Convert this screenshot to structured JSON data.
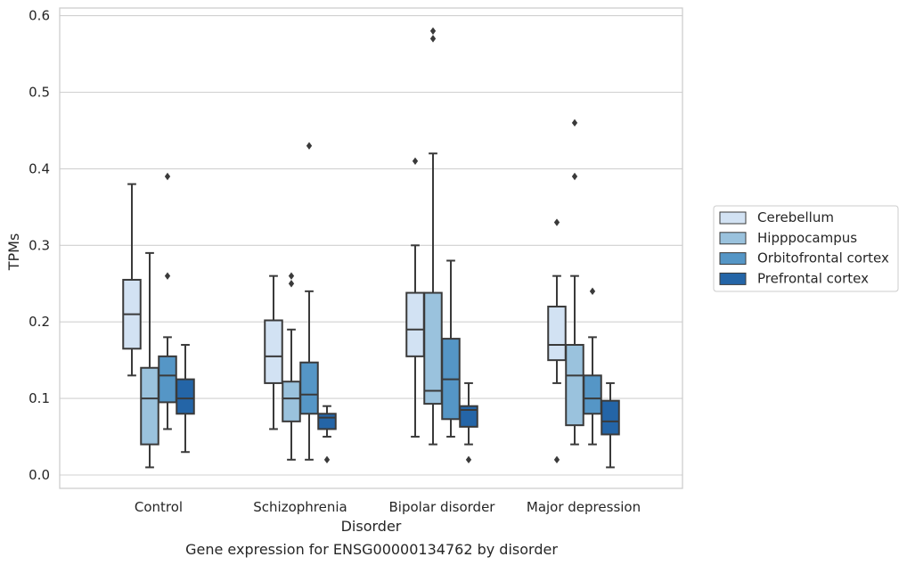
{
  "chart_data": {
    "type": "box",
    "title": "",
    "caption": "Gene expression for ENSG00000134762 by disorder",
    "xlabel": "Disorder",
    "ylabel": "TPMs",
    "ylim": [
      -0.017,
      0.61
    ],
    "yticks": [
      0.0,
      0.1,
      0.2,
      0.3,
      0.4,
      0.5,
      0.6
    ],
    "ytick_labels": [
      "0.0",
      "0.1",
      "0.2",
      "0.3",
      "0.4",
      "0.5",
      "0.6"
    ],
    "grid": true,
    "legend_position": "right",
    "categories": [
      "Control",
      "Schizophrenia",
      "Bipolar disorder",
      "Major depression"
    ],
    "series": [
      {
        "name": "Cerebellum",
        "color": "#d2e2f3",
        "boxes": [
          {
            "whislo": 0.13,
            "q1": 0.165,
            "med": 0.21,
            "q3": 0.255,
            "whishi": 0.38,
            "fliers": []
          },
          {
            "whislo": 0.06,
            "q1": 0.12,
            "med": 0.155,
            "q3": 0.202,
            "whishi": 0.26,
            "fliers": []
          },
          {
            "whislo": 0.05,
            "q1": 0.155,
            "med": 0.19,
            "q3": 0.238,
            "whishi": 0.3,
            "fliers": [
              0.41
            ]
          },
          {
            "whislo": 0.12,
            "q1": 0.15,
            "med": 0.17,
            "q3": 0.22,
            "whishi": 0.26,
            "fliers": [
              0.02,
              0.33
            ]
          }
        ]
      },
      {
        "name": "Hipppocampus",
        "color": "#9ac2dd",
        "boxes": [
          {
            "whislo": 0.01,
            "q1": 0.04,
            "med": 0.1,
            "q3": 0.14,
            "whishi": 0.29,
            "fliers": []
          },
          {
            "whislo": 0.02,
            "q1": 0.07,
            "med": 0.1,
            "q3": 0.122,
            "whishi": 0.19,
            "fliers": [
              0.25,
              0.26
            ]
          },
          {
            "whislo": 0.04,
            "q1": 0.093,
            "med": 0.11,
            "q3": 0.238,
            "whishi": 0.42,
            "fliers": [
              0.57,
              0.58
            ]
          },
          {
            "whislo": 0.04,
            "q1": 0.065,
            "med": 0.13,
            "q3": 0.17,
            "whishi": 0.26,
            "fliers": [
              0.39,
              0.46
            ]
          }
        ]
      },
      {
        "name": "Orbitofrontal cortex",
        "color": "#5596c6",
        "boxes": [
          {
            "whislo": 0.06,
            "q1": 0.095,
            "med": 0.13,
            "q3": 0.155,
            "whishi": 0.18,
            "fliers": [
              0.26,
              0.39
            ]
          },
          {
            "whislo": 0.02,
            "q1": 0.08,
            "med": 0.105,
            "q3": 0.147,
            "whishi": 0.24,
            "fliers": [
              0.43
            ]
          },
          {
            "whislo": 0.05,
            "q1": 0.073,
            "med": 0.125,
            "q3": 0.178,
            "whishi": 0.28,
            "fliers": []
          },
          {
            "whislo": 0.04,
            "q1": 0.08,
            "med": 0.1,
            "q3": 0.13,
            "whishi": 0.18,
            "fliers": [
              0.24
            ]
          }
        ]
      },
      {
        "name": "Prefrontal cortex",
        "color": "#2465a7",
        "boxes": [
          {
            "whislo": 0.03,
            "q1": 0.08,
            "med": 0.1,
            "q3": 0.125,
            "whishi": 0.17,
            "fliers": []
          },
          {
            "whislo": 0.05,
            "q1": 0.06,
            "med": 0.075,
            "q3": 0.08,
            "whishi": 0.09,
            "fliers": [
              0.02
            ]
          },
          {
            "whislo": 0.04,
            "q1": 0.063,
            "med": 0.085,
            "q3": 0.09,
            "whishi": 0.12,
            "fliers": [
              0.02
            ]
          },
          {
            "whislo": 0.01,
            "q1": 0.053,
            "med": 0.07,
            "q3": 0.097,
            "whishi": 0.12,
            "fliers": []
          }
        ]
      }
    ]
  }
}
